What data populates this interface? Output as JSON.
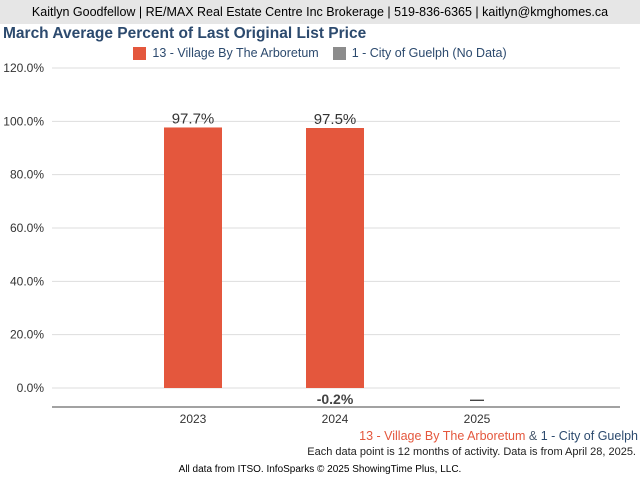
{
  "header": {
    "agent_line": "Kaitlyn Goodfellow | RE/MAX Real Estate Centre Inc Brokerage | 519-836-6365 | kaitlyn@kmghomes.ca"
  },
  "legend": {
    "items": [
      {
        "label": "13 - Village By The Arboretum",
        "color": "#e4573d"
      },
      {
        "label": "1 - City of Guelph (No Data)",
        "color": "#8c8c8c"
      }
    ]
  },
  "chart_data": {
    "type": "bar",
    "title": "March Average Percent of Last Original List Price",
    "categories": [
      "2023",
      "2024",
      "2025"
    ],
    "series": [
      {
        "name": "13 - Village By The Arboretum",
        "color": "#e4573d",
        "values": [
          97.7,
          97.5,
          null
        ],
        "value_labels": [
          "97.7%",
          "97.5%",
          ""
        ]
      }
    ],
    "change_labels": [
      "",
      "-0.2%",
      "—"
    ],
    "ylim": [
      0,
      120
    ],
    "yticks": [
      "0.0%",
      "20.0%",
      "40.0%",
      "60.0%",
      "80.0%",
      "100.0%",
      "120.0%"
    ],
    "ytick_values": [
      0,
      20,
      40,
      60,
      80,
      100,
      120
    ],
    "grid": true,
    "legend_position": "top-center"
  },
  "footnotes": {
    "series_primary": "13 - Village By The Arboretum",
    "ampersand": "&",
    "series_secondary": "1 - City of Guelph",
    "activity_note": "Each data point is 12 months of activity. Data is from April 28, 2025.",
    "source": "All data from ITSO. InfoSparks © 2025 ShowingTime Plus, LLC."
  },
  "colors": {
    "primary": "#e4573d",
    "secondary_gray": "#8c8c8c",
    "secondary_blue": "#2c4a6e",
    "title": "#2c4a6e"
  }
}
